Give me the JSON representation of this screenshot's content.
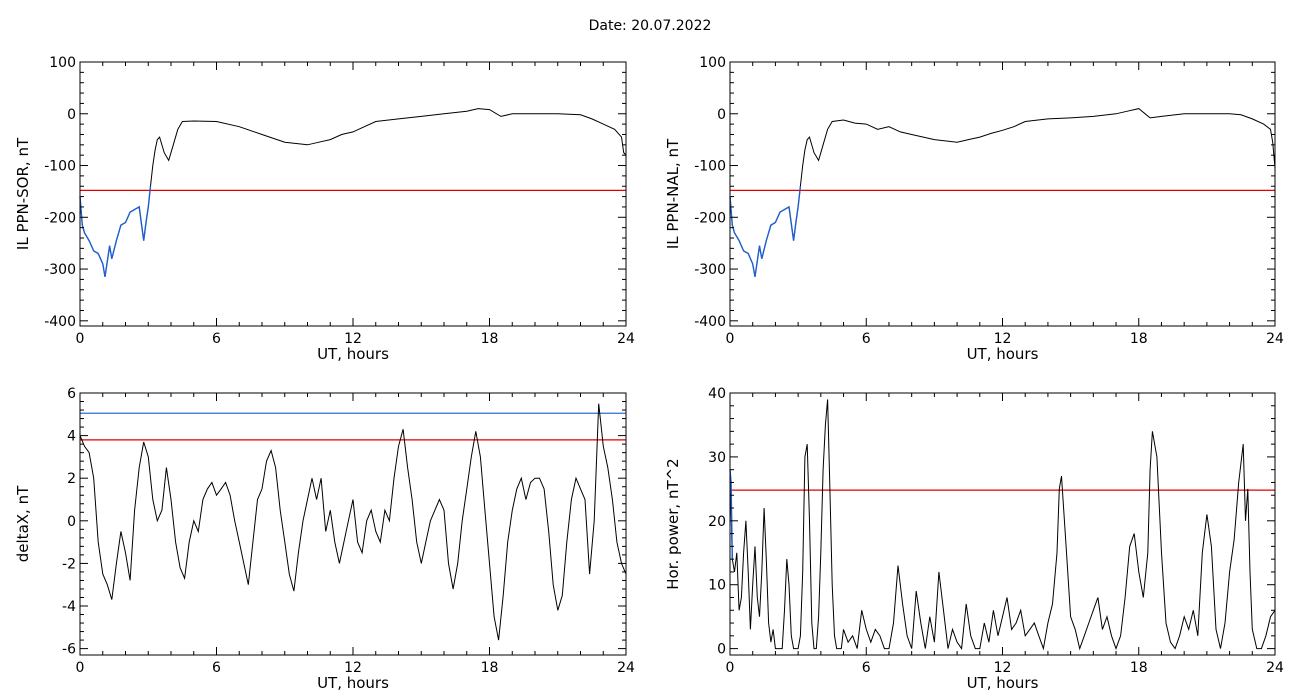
{
  "page": {
    "title": "Date:  20.07.2022"
  },
  "chart_data": [
    {
      "id": "p1",
      "type": "line",
      "ylabel": "IL PPN-SOR, nT",
      "xlabel": "UT, hours",
      "xlim": [
        0,
        24
      ],
      "ylim": [
        -410,
        100
      ],
      "xticks": [
        0,
        6,
        12,
        18,
        24
      ],
      "yticks": [
        -400,
        -300,
        -200,
        -100,
        0,
        100
      ],
      "grid": false,
      "hlines": [
        {
          "y": -148,
          "color": "#e00000"
        }
      ],
      "series": [
        {
          "color": "#000000",
          "x": [
            0,
            0.1,
            0.2,
            0.4,
            0.6,
            0.8,
            1.0,
            1.1,
            1.3,
            1.4,
            1.6,
            1.8,
            2.0,
            2.2,
            2.4,
            2.6,
            2.8,
            2.9,
            3.0,
            3.1,
            3.2,
            3.3,
            3.4,
            3.5,
            3.7,
            3.9,
            4.1,
            4.3,
            4.5,
            5,
            6,
            7,
            8,
            9,
            10,
            10.5,
            11,
            11.5,
            12,
            12.5,
            13,
            14,
            15,
            16,
            17,
            17.5,
            18,
            18.5,
            19,
            20,
            21,
            22,
            22.5,
            23,
            23.5,
            23.8,
            23.9,
            24
          ],
          "y": [
            -160,
            -215,
            -230,
            -245,
            -265,
            -270,
            -290,
            -315,
            -255,
            -280,
            -245,
            -215,
            -210,
            -190,
            -185,
            -180,
            -245,
            -210,
            -180,
            -140,
            -100,
            -70,
            -50,
            -45,
            -75,
            -90,
            -60,
            -30,
            -15,
            -14,
            -15,
            -25,
            -40,
            -55,
            -60,
            -55,
            -50,
            -40,
            -35,
            -25,
            -15,
            -10,
            -5,
            0,
            5,
            10,
            8,
            -5,
            0,
            0,
            0,
            -2,
            -10,
            -20,
            -30,
            -45,
            -75,
            -80
          ]
        }
      ],
      "highlight": {
        "color": "#1f5fd0",
        "x": [
          0,
          0.1,
          0.2,
          0.4,
          0.6,
          0.8,
          1.0,
          1.1,
          1.3,
          1.4,
          1.6,
          1.8,
          2.0,
          2.2,
          2.4,
          2.6,
          2.8,
          2.9,
          3.0,
          3.1
        ],
        "y": [
          -160,
          -215,
          -230,
          -245,
          -265,
          -270,
          -290,
          -315,
          -255,
          -280,
          -245,
          -215,
          -210,
          -190,
          -185,
          -180,
          -245,
          -210,
          -180,
          -140
        ]
      }
    },
    {
      "id": "p2",
      "type": "line",
      "ylabel": "IL PPN-NAL, nT",
      "xlabel": "UT, hours",
      "xlim": [
        0,
        24
      ],
      "ylim": [
        -410,
        100
      ],
      "xticks": [
        0,
        6,
        12,
        18,
        24
      ],
      "yticks": [
        -400,
        -300,
        -200,
        -100,
        0,
        100
      ],
      "grid": false,
      "hlines": [
        {
          "y": -148,
          "color": "#e00000"
        }
      ],
      "series": [
        {
          "color": "#000000",
          "x": [
            0,
            0.1,
            0.2,
            0.4,
            0.6,
            0.8,
            1.0,
            1.1,
            1.3,
            1.4,
            1.6,
            1.8,
            2.0,
            2.2,
            2.4,
            2.6,
            2.8,
            2.9,
            3.0,
            3.1,
            3.2,
            3.3,
            3.4,
            3.5,
            3.7,
            3.9,
            4.1,
            4.3,
            4.5,
            5,
            5.5,
            6,
            6.5,
            7,
            7.5,
            8,
            9,
            10,
            10.5,
            11,
            11.5,
            12,
            12.5,
            13,
            14,
            15,
            16,
            17,
            17.5,
            18,
            18.5,
            19,
            20,
            21,
            22,
            22.5,
            23,
            23.5,
            23.8,
            23.9,
            24
          ],
          "y": [
            -160,
            -215,
            -230,
            -245,
            -265,
            -270,
            -290,
            -315,
            -255,
            -280,
            -245,
            -215,
            -210,
            -190,
            -185,
            -180,
            -245,
            -210,
            -180,
            -140,
            -100,
            -70,
            -50,
            -45,
            -75,
            -90,
            -60,
            -30,
            -15,
            -12,
            -18,
            -20,
            -30,
            -25,
            -35,
            -40,
            -50,
            -55,
            -50,
            -45,
            -38,
            -32,
            -25,
            -15,
            -10,
            -8,
            -5,
            0,
            5,
            10,
            -8,
            -5,
            0,
            0,
            0,
            -2,
            -10,
            -20,
            -30,
            -55,
            -105
          ]
        }
      ],
      "highlight": {
        "color": "#1f5fd0",
        "x": [
          0,
          0.1,
          0.2,
          0.4,
          0.6,
          0.8,
          1.0,
          1.1,
          1.3,
          1.4,
          1.6,
          1.8,
          2.0,
          2.2,
          2.4,
          2.6,
          2.8,
          2.9,
          3.0,
          3.1
        ],
        "y": [
          -160,
          -215,
          -230,
          -245,
          -265,
          -270,
          -290,
          -315,
          -255,
          -280,
          -245,
          -215,
          -210,
          -190,
          -185,
          -180,
          -245,
          -210,
          -180,
          -140
        ]
      }
    },
    {
      "id": "p3",
      "type": "line",
      "ylabel": "deltaX, nT",
      "xlabel": "UT, hours",
      "xlim": [
        0,
        24
      ],
      "ylim": [
        -6.3,
        6
      ],
      "xticks": [
        0,
        6,
        12,
        18,
        24
      ],
      "yticks": [
        -6,
        -4,
        -2,
        0,
        2,
        4,
        6
      ],
      "grid": false,
      "hlines": [
        {
          "y": 5.05,
          "color": "#2f6fd0"
        },
        {
          "y": 3.8,
          "color": "#e00000"
        }
      ],
      "series": [
        {
          "color": "#000000",
          "x": [
            0,
            0.2,
            0.4,
            0.6,
            0.8,
            1.0,
            1.2,
            1.4,
            1.6,
            1.8,
            2.0,
            2.2,
            2.4,
            2.6,
            2.8,
            3.0,
            3.2,
            3.4,
            3.6,
            3.8,
            4.0,
            4.2,
            4.4,
            4.6,
            4.8,
            5.0,
            5.2,
            5.4,
            5.6,
            5.8,
            6.0,
            6.2,
            6.4,
            6.6,
            6.8,
            7.0,
            7.2,
            7.4,
            7.6,
            7.8,
            8.0,
            8.2,
            8.4,
            8.6,
            8.8,
            9.0,
            9.2,
            9.4,
            9.6,
            9.8,
            10.0,
            10.2,
            10.4,
            10.6,
            10.8,
            11.0,
            11.2,
            11.4,
            11.6,
            11.8,
            12.0,
            12.2,
            12.4,
            12.6,
            12.8,
            13.0,
            13.2,
            13.4,
            13.6,
            13.8,
            14.0,
            14.2,
            14.4,
            14.6,
            14.8,
            15.0,
            15.2,
            15.4,
            15.6,
            15.8,
            16.0,
            16.2,
            16.4,
            16.6,
            16.8,
            17.0,
            17.2,
            17.4,
            17.6,
            17.8,
            18.0,
            18.2,
            18.4,
            18.6,
            18.8,
            19.0,
            19.2,
            19.4,
            19.6,
            19.8,
            20.0,
            20.2,
            20.4,
            20.6,
            20.8,
            21.0,
            21.2,
            21.4,
            21.6,
            21.8,
            22.0,
            22.2,
            22.4,
            22.6,
            22.8,
            23.0,
            23.2,
            23.4,
            23.6,
            23.8,
            24.0
          ],
          "y": [
            4.0,
            3.5,
            3.2,
            2.0,
            -1.0,
            -2.5,
            -3.0,
            -3.7,
            -2.0,
            -0.5,
            -1.5,
            -2.8,
            0.5,
            2.5,
            3.7,
            3.0,
            1.0,
            0.0,
            0.5,
            2.5,
            1.0,
            -1.0,
            -2.2,
            -2.7,
            -1.0,
            0.0,
            -0.5,
            1.0,
            1.5,
            1.8,
            1.2,
            1.5,
            1.8,
            1.2,
            0.0,
            -1.0,
            -2.0,
            -3.0,
            -1.0,
            1.0,
            1.5,
            2.8,
            3.3,
            2.5,
            0.5,
            -1.0,
            -2.5,
            -3.3,
            -1.5,
            0.0,
            1.0,
            2.0,
            1.0,
            2.0,
            -0.5,
            0.5,
            -1.0,
            -2.0,
            -1.0,
            0.0,
            1.0,
            -1.0,
            -1.5,
            0.0,
            0.5,
            -0.5,
            -1.0,
            0.5,
            0.0,
            2.0,
            3.5,
            4.3,
            2.5,
            1.0,
            -1.0,
            -2.0,
            -1.0,
            0.0,
            0.5,
            1.0,
            0.5,
            -2.0,
            -3.2,
            -2.0,
            0.0,
            1.5,
            3.0,
            4.2,
            3.0,
            0.5,
            -2.0,
            -4.5,
            -5.6,
            -3.5,
            -1.0,
            0.5,
            1.5,
            2.0,
            1.0,
            1.8,
            2.0,
            2.0,
            1.5,
            -0.5,
            -3.0,
            -4.2,
            -3.5,
            -1.0,
            1.0,
            2.0,
            1.5,
            1.0,
            -2.5,
            0.0,
            5.5,
            3.5,
            2.5,
            1.0,
            -1.0,
            -2.0,
            -2.5
          ]
        }
      ]
    },
    {
      "id": "p4",
      "type": "line",
      "ylabel": "Hor. power, nT^2",
      "xlabel": "UT, hours",
      "xlim": [
        0,
        24
      ],
      "ylim": [
        -1,
        40
      ],
      "xticks": [
        0,
        6,
        12,
        18,
        24
      ],
      "yticks": [
        0,
        10,
        20,
        30,
        40
      ],
      "grid": false,
      "hlines": [
        {
          "y": 24.8,
          "color": "#e00000"
        }
      ],
      "series": [
        {
          "color": "#000000",
          "x": [
            0,
            0.1,
            0.2,
            0.3,
            0.4,
            0.5,
            0.6,
            0.7,
            0.8,
            0.9,
            1.0,
            1.1,
            1.2,
            1.3,
            1.4,
            1.5,
            1.6,
            1.7,
            1.8,
            1.9,
            2.0,
            2.1,
            2.2,
            2.3,
            2.4,
            2.5,
            2.6,
            2.7,
            2.8,
            2.9,
            3.0,
            3.1,
            3.2,
            3.3,
            3.4,
            3.5,
            3.6,
            3.7,
            3.8,
            3.9,
            4.0,
            4.1,
            4.2,
            4.3,
            4.4,
            4.5,
            4.6,
            4.7,
            4.8,
            4.9,
            5.0,
            5.2,
            5.4,
            5.6,
            5.8,
            6.0,
            6.2,
            6.4,
            6.6,
            6.8,
            7.0,
            7.2,
            7.4,
            7.6,
            7.8,
            8.0,
            8.2,
            8.4,
            8.6,
            8.8,
            9.0,
            9.2,
            9.4,
            9.6,
            9.8,
            10.0,
            10.2,
            10.4,
            10.6,
            10.8,
            11.0,
            11.2,
            11.4,
            11.6,
            11.8,
            12.0,
            12.2,
            12.4,
            12.6,
            12.8,
            13.0,
            13.2,
            13.4,
            13.6,
            13.8,
            14.0,
            14.2,
            14.4,
            14.5,
            14.6,
            14.8,
            15.0,
            15.2,
            15.4,
            15.6,
            15.8,
            16.0,
            16.2,
            16.4,
            16.6,
            16.8,
            17.0,
            17.2,
            17.4,
            17.6,
            17.8,
            18.0,
            18.2,
            18.4,
            18.5,
            18.6,
            18.8,
            19.0,
            19.2,
            19.4,
            19.6,
            19.8,
            20.0,
            20.2,
            20.4,
            20.6,
            20.8,
            21.0,
            21.2,
            21.4,
            21.6,
            21.8,
            22.0,
            22.2,
            22.4,
            22.6,
            22.7,
            22.8,
            22.9,
            23.0,
            23.2,
            23.4,
            23.6,
            23.8,
            24.0
          ],
          "y": [
            28,
            14,
            12,
            15,
            6,
            8,
            15,
            20,
            12,
            3,
            10,
            16,
            8,
            5,
            12,
            22,
            14,
            4,
            1,
            3,
            0,
            0,
            0,
            0,
            6,
            14,
            10,
            2,
            0,
            0,
            0,
            2,
            12,
            30,
            32,
            20,
            4,
            0,
            0,
            5,
            15,
            28,
            35,
            39,
            25,
            10,
            2,
            0,
            0,
            0,
            3,
            1,
            2,
            0,
            6,
            3,
            1,
            3,
            2,
            0,
            0,
            4,
            13,
            7,
            2,
            0,
            9,
            4,
            0,
            5,
            1,
            12,
            6,
            0,
            3,
            1,
            0,
            7,
            2,
            0,
            0,
            4,
            1,
            6,
            2,
            5,
            8,
            3,
            4,
            6,
            2,
            3,
            4,
            2,
            0,
            4,
            7,
            15,
            25,
            27,
            16,
            5,
            3,
            0,
            2,
            4,
            6,
            8,
            3,
            5,
            2,
            0,
            2,
            8,
            16,
            18,
            12,
            8,
            15,
            28,
            34,
            30,
            15,
            4,
            1,
            0,
            2,
            5,
            3,
            6,
            2,
            15,
            21,
            16,
            3,
            0,
            4,
            12,
            17,
            26,
            32,
            20,
            25,
            12,
            3,
            0,
            0,
            2,
            5,
            6
          ]
        }
      ],
      "highlight": {
        "color": "#1f5fd0",
        "x": [
          0,
          0.05,
          0.1
        ],
        "y": [
          28,
          26,
          14
        ]
      }
    }
  ]
}
